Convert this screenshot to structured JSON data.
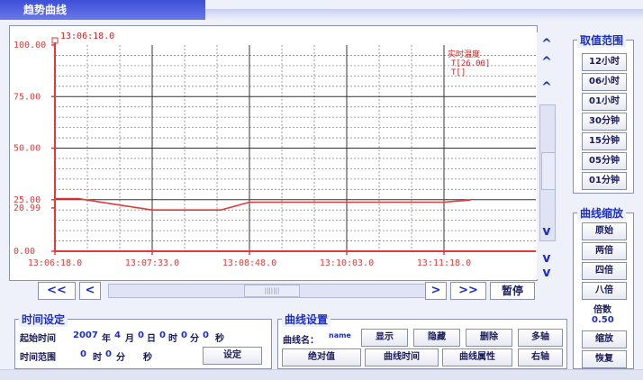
{
  "window": {
    "title": "趋势曲线"
  },
  "chart": {
    "start_time_label": "13:06:18.0",
    "y_ticks": [
      "100.00",
      "75.00",
      "50.00",
      "25.00",
      "20.99",
      "0.00"
    ],
    "x_ticks": [
      "13:06:18.0",
      "13:07:33.0",
      "13:08:48.0",
      "13:10:03.0",
      "13:11:18.0"
    ],
    "legend": {
      "title": "实时温度",
      "value": "T[26.00]",
      "secondary": "T[]"
    },
    "line_color": "#e23a3a"
  },
  "chart_data": {
    "type": "line",
    "x": [
      "13:06:18.0",
      "13:06:36.0",
      "13:07:33.0",
      "13:08:26.0",
      "13:08:48.0",
      "13:10:03.0",
      "13:11:18.0",
      "13:11:38.0"
    ],
    "series": [
      {
        "values": [
          25.5,
          25.5,
          20.0,
          20.0,
          23.8,
          23.8,
          23.8,
          24.8
        ]
      }
    ],
    "y_ticks": [
      "100.00",
      "75.00",
      "50.00",
      "25.00",
      "20.99",
      "0.00"
    ],
    "ylim": [
      0,
      100
    ],
    "grid": true
  },
  "scroll": {
    "vertical": [
      "^",
      "^",
      "^",
      "v",
      "v",
      "v"
    ],
    "page_left": "<<",
    "step_left": "<",
    "step_right": ">",
    "page_right": ">>",
    "thumb_grip": "|||||||"
  },
  "pause_label": "暂停",
  "range_panel": {
    "title": "取值范围",
    "buttons": [
      "12小时",
      "06小时",
      "01小时",
      "30分钟",
      "15分钟",
      "05分钟",
      "01分钟"
    ]
  },
  "zoom_panel": {
    "title": "曲线缩放",
    "buttons": [
      "原始",
      "两倍",
      "四倍",
      "八倍"
    ],
    "multiplier_label": "倍数",
    "multiplier_value": "0.50",
    "apply": "缩放",
    "reset": "恢复"
  },
  "time_panel": {
    "title": "时间设定",
    "start_label": "起始时间",
    "year_value": "2007",
    "year_unit": "年",
    "month_value": "4",
    "month_unit": "月",
    "day_value": "0",
    "day_unit": "日",
    "hour_value": "0",
    "hour_unit": "时",
    "minute_value": "0",
    "minute_unit": "分",
    "second_value": "0",
    "second_unit": "秒",
    "range_label": "时间范围",
    "range_hour_value": "0",
    "range_hour_unit": "时",
    "range_minute_value": "0",
    "range_minute_unit": "分",
    "range_second_unit": "秒",
    "set_button": "设定"
  },
  "curve_panel": {
    "title": "曲线设置",
    "name_label": "曲线名：",
    "name_value": "name",
    "buttons_row1": [
      "显示",
      "隐藏",
      "删除",
      "多轴"
    ],
    "buttons_row2": [
      "绝对值",
      "曲线时间",
      "曲线属性",
      "右轴"
    ]
  }
}
